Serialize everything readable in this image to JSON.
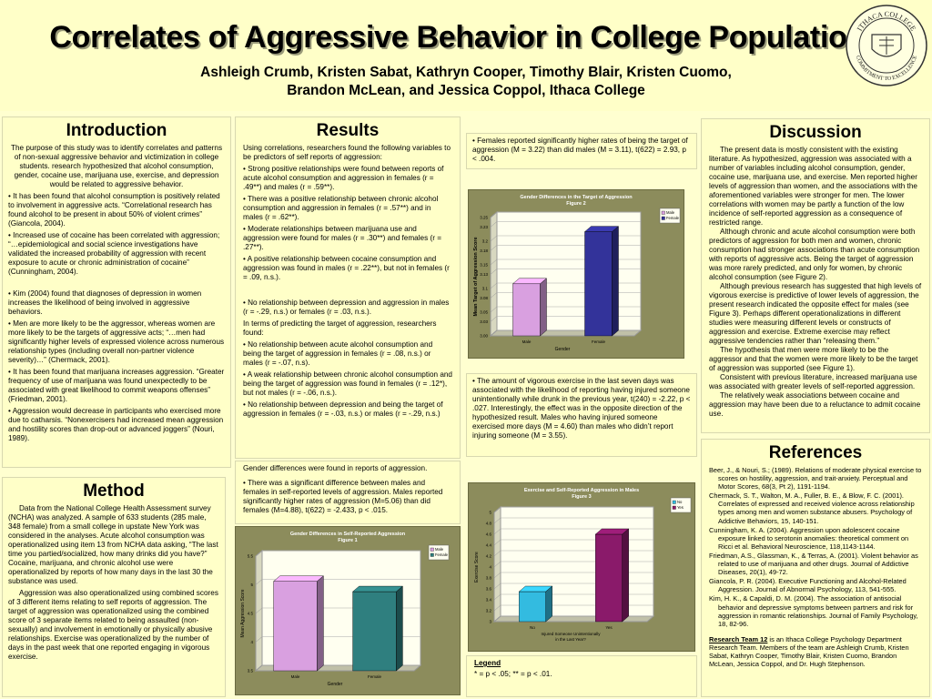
{
  "header": {
    "title": "Correlates of Aggressive Behavior in College Populations",
    "authors_line1": "Ashleigh Crumb, Kristen Sabat, Kathryn Cooper, Timothy Blair, Kristen Cuomo,",
    "authors_line2": "Brandon McLean, and Jessica Coppol, Ithaca College",
    "seal_top_text": "ITHACA COLLEGE",
    "seal_bottom_text": "COMMITMENT TO EXCELLENCE"
  },
  "introduction": {
    "title": "Introduction",
    "p1": "The purpose of this study was to identify correlates and patterns of non-sexual aggressive behavior and victimization in college students. research hypothesized that alcohol consumption, gender, cocaine use, marijuana use, exercise, and depression would be related to aggressive behavior.",
    "b1": "• It has been found that alcohol consumption is positively related to involvement in aggressive acts. “Correlational research has found alcohol to be present in about 50% of violent crimes” (Giancola, 2004).",
    "b2": "• Increased use of cocaine has been correlated with aggression; “…epidemiological and social science investigations have validated the increased probability of aggression with recent exposure to acute or chronic administration of cocaine” (Cunningham, 2004).",
    "b3": "• Kim (2004) found that diagnoses of depression in women increases the likelihood of being involved in aggressive behaviors.",
    "b4": "• Men are more likely to be the aggressor, whereas women are more likely to be the targets of aggressive acts; “…men had significantly higher levels of expressed violence across numerous relationship types (including overall non-partner violence severity)…” (Chermack, 2001).",
    "b5": "• It has been found that marijuana increases aggression. “Greater frequency of use of marijuana was found unexpectedly to be associated with great likelihood to commit weapons offenses” (Friedman, 2001).",
    "b6": "• Aggression would decrease in participants who exercised more due to catharsis. “Nonexercisers had increased mean aggression and hostility scores than drop-out or advanced joggers” (Nouri, 1989)."
  },
  "method": {
    "title": "Method",
    "p1": "Data from the National College Health Assessment survey (NCHA) was analyzed. A sample of 633 students (285 male, 348 female) from a small college in upstate New York was considered in the analyses. Acute alcohol consumption was operationalized using item 13 from NCHA data asking, “The last time you partied/socialized, how many drinks did you have?” Cocaine, marijuana, and chronic alcohol use were operationalized by reports of how many days in the last 30 the substance was used.",
    "p2": "Aggression was also operationalized using combined scores of 3 different items relating to self reports of aggression. The target of aggression was operationalized using the combined score of 3 separate items related to being assaulted (non-sexually) and involvement in emotionally or physically abusive relationships. Exercise was operationalized by the number of days in the past week that one reported engaging in vigorous exercise."
  },
  "results": {
    "title": "Results",
    "intro": "Using correlations, researchers found the following variables to be predictors of self reports of aggression:",
    "b1": "• Strong positive relationships were found between reports of acute alcohol consumption and aggression in females (r = .49**) and males (r = .59**).",
    "b2": "• There was a positive relationship between chronic alcohol consumption and aggression in females (r = .57**) and in males (r = .62**).",
    "b3": "• Moderate relationships between marijuana use and aggression were found for males (r = .30**) and females (r = .27**).",
    "b4": "• A positive relationship between cocaine consumption and aggression was found in males (r = .22**), but not in females (r = .09, n.s.).",
    "b5": "• No relationship between depression and aggression in males (r = -.29, n.s.) or females (r = .03, n.s.).",
    "target_intro": "In terms of predicting the target of aggression, researchers found:",
    "b6": "• No relationship between acute alcohol consumption and being the target of aggression in females (r = .08, n.s.) or males (r = -.07, n.s).",
    "b7": "• A weak relationship between chronic alcohol consumption and being the target of aggression was found in females (r = .12*), but not males (r = -.06, n.s.).",
    "b8": "• No relationship between depression and being the target of aggression in females (r = -.03, n.s.) or males (r = -.29, n.s.)",
    "gender_intro": "Gender differences were found in reports of aggression.",
    "b9": "• There was a significant difference between males and females in self-reported levels of aggression. Males reported significantly higher rates of aggression (M=5.06) than did females (M=4.88), t(622) = -2.433, p < .015.",
    "b10": "• Females reported significantly higher rates of being the target of aggression (M = 3.22) than did males (M = 3.11), t(622) = 2.93, p < .004.",
    "b11": "• The amount of vigorous exercise in the last seven days was associated with the likelihood of reporting having injured someone unintentionally while drunk in the previous year, t(240) = -2.22, p < .027. Interestingly, the effect was in the opposite direction of the hypothesized result. Males who having injured someone exercised more days (M = 4.60) than males who didn’t report injuring someone (M = 3.55).",
    "legend_title": "Legend",
    "legend_text": "* = p < .05; ** = p < .01."
  },
  "discussion": {
    "title": "Discussion",
    "p1": "The present data is mostly consistent with the existing literature. As hypothesized, aggression was associated with a number of variables including alcohol consumption, gender, cocaine use, marijuana use, and exercise. Men reported higher levels of aggression than women, and the associations with the aforementioned variables were stronger for men. The lower correlations with women may be partly a function of the low incidence of self-reported aggression as a consequence of restricted range.",
    "p2": "Although chronic and acute alcohol consumption were both predictors of aggression for both men and women, chronic consumption had stronger associations than acute consumption with reports of aggressive acts. Being the target of aggression was more rarely predicted, and only for women, by chronic alcohol consumption (see Figure 2).",
    "p3": "Although previous research has suggested that high levels of vigorous exercise is predictive of lower levels of aggression, the present research indicated the opposite effect for males (see Figure 3). Perhaps different operationalizations in different studies were measuring different levels or constructs of aggression and exercise. Extreme exercise may reflect aggressive tendencies rather than “releasing them.”",
    "p4": "The hypothesis that men were more likely to be the aggressor and that the women were more likely to be the target of aggression was supported (see Figure 1).",
    "p5": "Consistent with previous literature, increased marijuana use was associated with greater levels of self-reported aggression.",
    "p6": "The relatively weak associations between cocaine and aggression may have been due to a reluctance to admit cocaine use."
  },
  "references": {
    "title": "References",
    "r1": "Beer, J., & Nouri, S.; (1989). Relations of moderate physical exercise to scores on hostility, aggression, and trait-anxiety. Perceptual and Motor Scores, 68(3, Pt 2), 1191-1194.",
    "r2": "Chermack, S. T., Walton, M. A., Fuller, B. E., & Blow, F. C. (2001). Correlates of expressed and received violence across relationship types among men and women substance abusers. Psychology of Addictive Behaviors, 15, 140-151.",
    "r3": "Cunningham, K. A. (2004). Aggression upon adolescent cocaine exposure linked to serotonin anomalies: theoretical comment on Ricci et al. Behavioral Neuroscience, 118,1143-1144.",
    "r4": "Friedman, A.S., Glassman, K., & Terras, A. (2001). Violent behavior as related to use of marijuana and other drugs. Journal of Addictive Diseases, 20(1), 49-72.",
    "r5": "Giancola, P. R. (2004). Executive Functioning and Alcohol-Related Aggression. Journal of Abnormal Psychology, 113, 541-555.",
    "r6": "Kim, H. K., & Capaldi, D. M. (2004). The association of antisocial behavior and depressive symptoms between partners and risk for aggression in romantic relationships. Journal of Family Psychology, 18, 82-96.",
    "team_label": "Research Team 12",
    "team_text": " is an Ithaca College Psychology Department Research Team. Members of the team are Ashleigh Crumb, Kristen Sabat, Kathryn Cooper, Timothy Blair, Kristen Cuomo, Brandon McLean, Jessica Coppol, and Dr. Hugh Stephenson."
  },
  "colors": {
    "male": "#d9a0e0",
    "female_fig1": "#2f7f7f",
    "female_fig2": "#33339a",
    "no": "#33bbe0",
    "yes": "#8a1a6a",
    "chart_bg": "#8c8c5c",
    "plot_bg": "#fffff0"
  },
  "chart_data": [
    {
      "id": "figure1",
      "type": "bar",
      "title": "Gender Differences in Self-Reported Aggression",
      "subtitle": "Figure 1",
      "categories": [
        "Male",
        "Female"
      ],
      "values": [
        5.06,
        4.88
      ],
      "xlabel": "Gender",
      "ylabel": "Mean Aggression Score",
      "ylim": [
        3.5,
        5.5
      ],
      "yticks": [
        "3.5",
        "4",
        "4.5",
        "5",
        "5.5"
      ],
      "legend": [
        "Male",
        "Female"
      ],
      "legend_position": "top-right"
    },
    {
      "id": "figure2",
      "type": "bar",
      "title": "Gender Differences in the Target of Aggression",
      "subtitle": "Figure 2",
      "categories": [
        "Male",
        "Female"
      ],
      "values": [
        3.11,
        3.22
      ],
      "xlabel": "Gender",
      "ylabel": "Mean Target of Aggression Score",
      "ylim": [
        3.0,
        3.25
      ],
      "yticks": [
        "3.00",
        "3.03",
        "3.05",
        "3.08",
        "3.1",
        "3.13",
        "3.15",
        "3.18",
        "3.2",
        "3.23",
        "3.25"
      ],
      "legend": [
        "Male",
        "Female"
      ],
      "legend_position": "top-right"
    },
    {
      "id": "figure3",
      "type": "bar",
      "title": "Exercise and Self-Reported Aggression in Males",
      "subtitle": "Figure 3",
      "categories": [
        "No",
        "Yes"
      ],
      "values": [
        3.55,
        4.6
      ],
      "xlabel": "Injured Someone Unintentionally in the Last Year?",
      "ylabel": "Exercise Score",
      "ylim": [
        3,
        5
      ],
      "yticks": [
        "3",
        "3.2",
        "3.4",
        "3.6",
        "3.8",
        "4",
        "4.2",
        "4.4",
        "4.6",
        "4.8",
        "5"
      ],
      "legend": [
        "No",
        "Yes"
      ],
      "legend_position": "top-right"
    }
  ]
}
